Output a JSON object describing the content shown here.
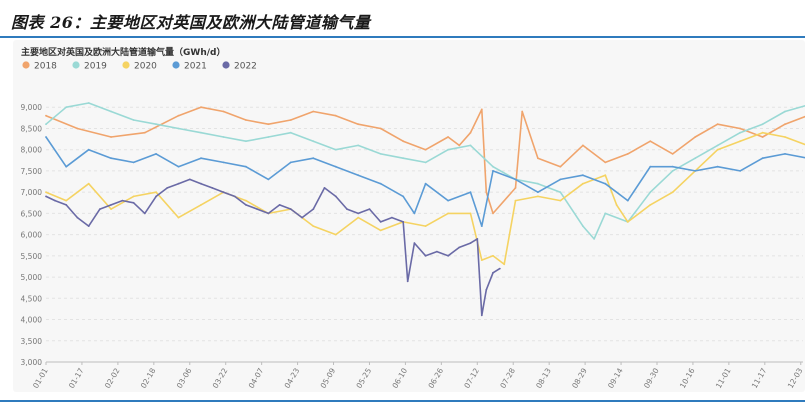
{
  "figure_title": "图表 26：主要地区对英国及欧洲大陆管道输气量",
  "chart_data": {
    "type": "line",
    "title": "主要地区对英国及欧洲大陆管道输气量（GWh/d）",
    "xlabel": "",
    "ylabel": "",
    "ylim": [
      3000,
      9500
    ],
    "yticks": [
      3000,
      3500,
      4000,
      4500,
      5000,
      5500,
      6000,
      6500,
      7000,
      7500,
      8000,
      8500,
      9000
    ],
    "ytick_labels": [
      "3,000",
      "3,500",
      "4,000",
      "4,500",
      "5,000",
      "5,500",
      "6,000",
      "6,500",
      "7,000",
      "7,500",
      "8,000",
      "8,500",
      "9,000"
    ],
    "x_ticks": [
      "01-01",
      "01-17",
      "02-02",
      "02-18",
      "03-06",
      "03-22",
      "04-07",
      "04-23",
      "05-09",
      "05-25",
      "06-10",
      "06-26",
      "07-12",
      "07-28",
      "08-13",
      "08-29",
      "09-14",
      "09-30",
      "10-16",
      "11-01",
      "11-17",
      "12-03"
    ],
    "x_tick_day": [
      1,
      17,
      33,
      49,
      65,
      81,
      97,
      113,
      129,
      145,
      161,
      177,
      193,
      209,
      225,
      241,
      257,
      273,
      289,
      305,
      321,
      337
    ],
    "grid": true,
    "legend_position": "top-left",
    "series": [
      {
        "name": "2018",
        "color": "#f0a46c",
        "x": [
          1,
          15,
          30,
          45,
          60,
          70,
          80,
          90,
          100,
          110,
          120,
          130,
          140,
          150,
          160,
          170,
          180,
          185,
          190,
          195,
          197,
          200,
          210,
          213,
          220,
          230,
          240,
          250,
          260,
          270,
          280,
          290,
          300,
          310,
          320,
          330,
          340,
          350
        ],
        "y": [
          8800,
          8500,
          8300,
          8400,
          8800,
          9000,
          8900,
          8700,
          8600,
          8700,
          8900,
          8800,
          8600,
          8500,
          8200,
          8000,
          8300,
          8100,
          8400,
          8950,
          7000,
          6500,
          7100,
          8900,
          7800,
          7600,
          8100,
          7700,
          7900,
          8200,
          7900,
          8300,
          8600,
          8500,
          8300,
          8600,
          8800,
          8400
        ]
      },
      {
        "name": "2019",
        "color": "#9ad9d5",
        "x": [
          1,
          10,
          20,
          30,
          40,
          50,
          60,
          70,
          80,
          90,
          100,
          110,
          120,
          130,
          140,
          150,
          160,
          170,
          180,
          190,
          200,
          210,
          220,
          230,
          240,
          245,
          250,
          260,
          270,
          280,
          290,
          300,
          310,
          320,
          330,
          340,
          350
        ],
        "y": [
          8600,
          9000,
          9100,
          8900,
          8700,
          8600,
          8500,
          8400,
          8300,
          8200,
          8300,
          8400,
          8200,
          8000,
          8100,
          7900,
          7800,
          7700,
          8000,
          8100,
          7600,
          7300,
          7200,
          7000,
          6200,
          5900,
          6500,
          6300,
          7000,
          7500,
          7800,
          8100,
          8400,
          8600,
          8900,
          9050,
          9100
        ]
      },
      {
        "name": "2020",
        "color": "#f5d362",
        "x": [
          1,
          10,
          20,
          30,
          40,
          50,
          60,
          70,
          80,
          90,
          100,
          110,
          120,
          130,
          140,
          150,
          160,
          170,
          180,
          190,
          195,
          200,
          205,
          210,
          220,
          230,
          240,
          250,
          255,
          260,
          270,
          280,
          290,
          300,
          310,
          320,
          330,
          340,
          350
        ],
        "y": [
          7000,
          6800,
          7200,
          6600,
          6900,
          7000,
          6400,
          6700,
          7000,
          6800,
          6500,
          6600,
          6200,
          6000,
          6400,
          6100,
          6300,
          6200,
          6500,
          6500,
          5400,
          5500,
          5300,
          6800,
          6900,
          6800,
          7200,
          7400,
          6700,
          6300,
          6700,
          7000,
          7500,
          8000,
          8200,
          8400,
          8300,
          8100,
          8000
        ]
      },
      {
        "name": "2021",
        "color": "#5b9bd5",
        "x": [
          1,
          10,
          20,
          30,
          40,
          50,
          60,
          70,
          80,
          90,
          100,
          110,
          120,
          130,
          140,
          150,
          160,
          165,
          170,
          180,
          190,
          195,
          200,
          210,
          220,
          230,
          240,
          250,
          260,
          270,
          280,
          290,
          300,
          310,
          320,
          330,
          340,
          350
        ],
        "y": [
          8300,
          7600,
          8000,
          7800,
          7700,
          7900,
          7600,
          7800,
          7700,
          7600,
          7300,
          7700,
          7800,
          7600,
          7400,
          7200,
          6900,
          6500,
          7200,
          6800,
          7000,
          6200,
          7500,
          7300,
          7000,
          7300,
          7400,
          7200,
          6800,
          7600,
          7600,
          7500,
          7600,
          7500,
          7800,
          7900,
          7800,
          7750
        ]
      },
      {
        "name": "2022",
        "color": "#6a6aa6",
        "x": [
          1,
          5,
          10,
          15,
          20,
          25,
          30,
          35,
          40,
          45,
          50,
          55,
          60,
          65,
          70,
          75,
          80,
          85,
          90,
          95,
          100,
          105,
          110,
          115,
          120,
          125,
          130,
          135,
          140,
          145,
          150,
          155,
          160,
          162,
          165,
          170,
          175,
          180,
          185,
          190,
          193,
          195,
          197,
          200,
          203
        ],
        "y": [
          6900,
          6800,
          6700,
          6400,
          6200,
          6600,
          6700,
          6800,
          6750,
          6500,
          6900,
          7100,
          7200,
          7300,
          7200,
          7100,
          7000,
          6900,
          6700,
          6600,
          6500,
          6700,
          6600,
          6400,
          6600,
          7100,
          6900,
          6600,
          6500,
          6600,
          6300,
          6400,
          6300,
          4900,
          5800,
          5500,
          5600,
          5500,
          5700,
          5800,
          5900,
          4100,
          4700,
          5100,
          5200
        ]
      }
    ]
  }
}
